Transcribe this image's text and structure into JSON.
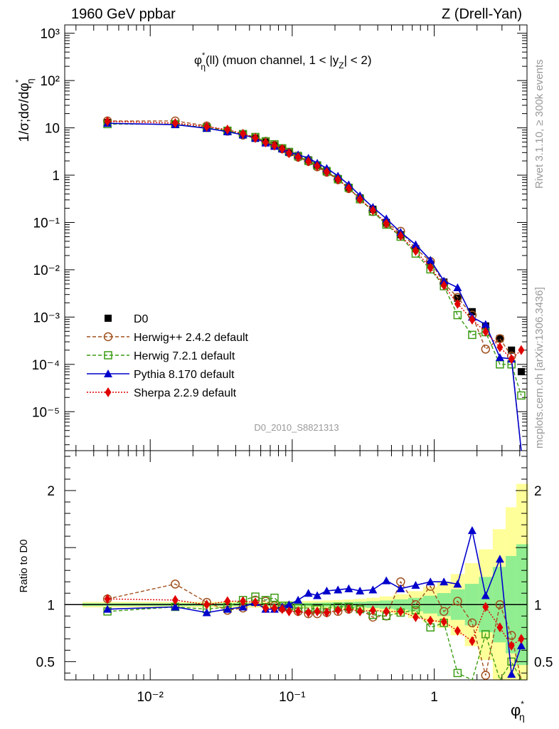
{
  "header": {
    "left": "1960 GeV ppbar",
    "right": "Z (Drell-Yan)"
  },
  "side_labels": {
    "rivet": "Rivet 3.1.10, ≥ 300k events",
    "mcplots": "mcplots.cern.ch [arXiv:1306.3436]"
  },
  "chart_data": [
    {
      "type": "line",
      "panel": "main",
      "title": "φ*η(ll) (muon channel, 1 < |yZ| < 2)",
      "ylabel": "1/σ;dσ/dφ*η",
      "watermark": "D0_2010_S8821313",
      "x_scale": "log",
      "y_scale": "log",
      "xlim": [
        0.0025,
        4.5
      ],
      "ylim": [
        1.5e-06,
        1500.0
      ],
      "x_tick_labels": [
        "10⁻²",
        "10⁻¹",
        "1"
      ],
      "y_tick_labels": [
        "10⁻⁵",
        "10⁻⁴",
        "10⁻³",
        "10⁻²",
        "10⁻¹",
        "1",
        "10",
        "10²",
        "10³"
      ],
      "x": [
        0.005,
        0.015,
        0.025,
        0.035,
        0.045,
        0.055,
        0.065,
        0.075,
        0.085,
        0.095,
        0.11,
        0.13,
        0.15,
        0.175,
        0.21,
        0.25,
        0.3,
        0.37,
        0.46,
        0.58,
        0.74,
        0.94,
        1.17,
        1.46,
        1.85,
        2.3,
        2.9,
        3.5,
        4.1
      ],
      "series": [
        {
          "name": "D0",
          "color": "#000000",
          "marker": "square",
          "line": "none",
          "values": [
            13,
            12,
            10.5,
            8.8,
            7.2,
            6.0,
            5.0,
            4.3,
            3.7,
            3.1,
            2.6,
            2.1,
            1.65,
            1.25,
            0.85,
            0.55,
            0.33,
            0.19,
            0.1,
            0.055,
            0.028,
            0.013,
            0.0055,
            0.0025,
            0.0013,
            0.00065,
            0.00035,
            0.0002,
            7e-05
          ]
        },
        {
          "name": "Herwig++ 2.4.2 default",
          "color": "#a0501e",
          "marker": "open-circle",
          "line": "dashed",
          "values": [
            14,
            14,
            11,
            8.5,
            7.0,
            6.3,
            5.2,
            4.3,
            3.6,
            3.0,
            2.4,
            1.95,
            1.5,
            1.15,
            0.8,
            0.52,
            0.32,
            0.17,
            0.095,
            0.065,
            0.028,
            0.015,
            0.0052,
            0.0026,
            0.0011,
            0.00021,
            0.00035,
            0.00015,
            0.0
          ]
        },
        {
          "name": "Herwig 7.2.1 default",
          "color": "#3c9c14",
          "marker": "open-square",
          "line": "dashed",
          "values": [
            12,
            12,
            10,
            8.7,
            7.4,
            6.4,
            5.2,
            4.5,
            3.7,
            3.1,
            2.5,
            2.0,
            1.6,
            1.2,
            0.82,
            0.54,
            0.31,
            0.17,
            0.09,
            0.05,
            0.022,
            0.0102,
            0.0045,
            0.0011,
            0.00042,
            0.00048,
            0.0001,
            0.0001,
            2.2e-05
          ]
        },
        {
          "name": "Pythia 8.170 default",
          "color": "#0000cc",
          "marker": "filled-triangle",
          "line": "solid",
          "values": [
            12.5,
            11.7,
            9.8,
            8.3,
            7.1,
            6.1,
            4.8,
            4.1,
            3.6,
            3.1,
            2.7,
            2.3,
            1.8,
            1.4,
            0.96,
            0.63,
            0.37,
            0.21,
            0.12,
            0.062,
            0.034,
            0.016,
            0.0058,
            0.0042,
            0.001,
            0.0007,
            0.00014,
            0.00013,
            0.0
          ]
        },
        {
          "name": "Sherpa 2.2.9 default",
          "color": "#e00000",
          "marker": "filled-diamond",
          "line": "dotted",
          "values": [
            13.7,
            12.6,
            10.6,
            9.2,
            7.5,
            6.1,
            4.9,
            4.2,
            3.6,
            2.9,
            2.4,
            1.95,
            1.55,
            1.17,
            0.81,
            0.53,
            0.31,
            0.18,
            0.095,
            0.052,
            0.025,
            0.011,
            0.0047,
            0.0019,
            0.00088,
            0.00049,
            0.00023,
            0.00013,
            0.0002
          ]
        }
      ],
      "legend_position": "left, lower half of upper panel"
    },
    {
      "type": "line",
      "panel": "ratio",
      "ylabel": "Ratio to D0",
      "xlabel": "φ*η",
      "x_scale": "log",
      "xlim": [
        0.0025,
        4.5
      ],
      "ylim": [
        0.34,
        2.35
      ],
      "y_tick_labels": [
        "0.5",
        "1",
        "2"
      ],
      "x": [
        0.005,
        0.015,
        0.025,
        0.035,
        0.045,
        0.055,
        0.065,
        0.075,
        0.085,
        0.095,
        0.11,
        0.13,
        0.15,
        0.175,
        0.21,
        0.25,
        0.3,
        0.37,
        0.46,
        0.58,
        0.74,
        0.94,
        1.17,
        1.46,
        1.85,
        2.3,
        2.9,
        3.5,
        4.1
      ],
      "band_inner_color": "#90ee90",
      "band_outer_color": "#ffff99",
      "series": [
        {
          "name": "Herwig++ 2.4.2 default",
          "color": "#a0501e",
          "marker": "open-circle",
          "line": "dashed",
          "values": [
            1.05,
            1.18,
            1.02,
            0.95,
            0.97,
            1.04,
            1.03,
            0.99,
            0.97,
            0.97,
            0.94,
            0.92,
            0.92,
            0.93,
            0.94,
            0.96,
            0.96,
            0.89,
            0.9,
            1.2,
            1.0,
            1.16,
            0.94,
            1.03,
            0.84,
            0.38,
            1.0,
            0.73,
            0.0
          ]
        },
        {
          "name": "Herwig 7.2.1 default",
          "color": "#3c9c14",
          "marker": "open-square",
          "line": "dashed",
          "values": [
            0.94,
            0.98,
            0.96,
            0.98,
            1.04,
            1.07,
            1.04,
            1.06,
            0.99,
            0.99,
            0.97,
            0.97,
            0.96,
            0.97,
            0.98,
            0.98,
            0.96,
            0.91,
            0.9,
            0.93,
            0.95,
            0.8,
            0.84,
            0.4,
            0.33,
            0.74,
            0.28,
            0.5,
            0.33
          ]
        },
        {
          "name": "Pythia 8.170 default",
          "color": "#0000cc",
          "marker": "filled-triangle",
          "line": "solid",
          "values": [
            0.96,
            0.98,
            0.93,
            0.96,
            0.98,
            1.02,
            0.96,
            0.96,
            0.98,
            1.0,
            1.04,
            1.1,
            1.08,
            1.12,
            1.13,
            1.14,
            1.12,
            1.13,
            1.21,
            1.14,
            1.17,
            1.2,
            1.2,
            1.18,
            1.65,
            1.08,
            1.4,
            0.39,
            0.64
          ]
        },
        {
          "name": "Sherpa 2.2.9 default",
          "color": "#e00000",
          "marker": "filled-diamond",
          "line": "dotted",
          "values": [
            1.05,
            1.04,
            1.0,
            1.03,
            1.03,
            1.02,
            0.97,
            0.97,
            0.96,
            0.94,
            0.94,
            0.93,
            0.94,
            0.93,
            0.95,
            0.96,
            0.94,
            0.95,
            0.94,
            0.94,
            0.89,
            0.86,
            0.85,
            0.77,
            0.68,
            0.98,
            0.8,
            0.64,
            0.7
          ]
        }
      ]
    }
  ]
}
